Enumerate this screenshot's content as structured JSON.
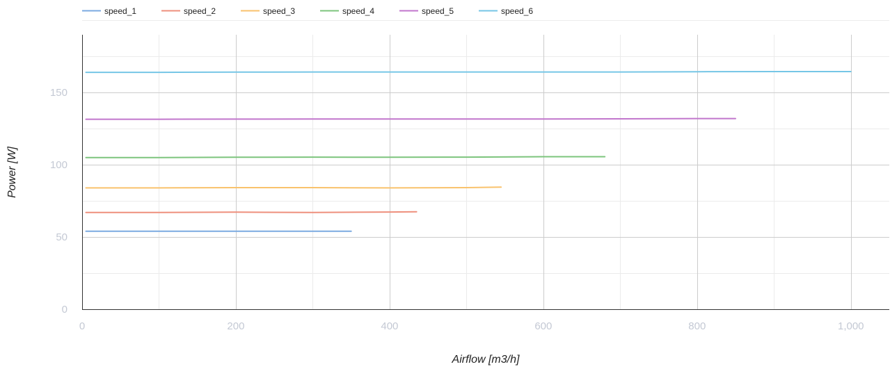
{
  "chart_data": {
    "type": "line",
    "xlabel": "Airflow [m3/h]",
    "ylabel": "Power [W]",
    "xlim": [
      0,
      1050
    ],
    "ylim": [
      0,
      190
    ],
    "x_ticks": [
      0,
      200,
      400,
      600,
      800,
      1000
    ],
    "x_tick_labels": [
      "0",
      "200",
      "400",
      "600",
      "800",
      "1,000"
    ],
    "x_minor_ticks": [
      100,
      300,
      500,
      700,
      900
    ],
    "y_ticks": [
      0,
      50,
      100,
      150
    ],
    "y_tick_labels": [
      "0",
      "50",
      "100",
      "150"
    ],
    "y_minor_ticks": [
      25,
      75,
      125,
      175
    ],
    "grid": true,
    "legend_position": "top-left",
    "series": [
      {
        "name": "speed_1",
        "color": "#7baae0",
        "x": [
          5,
          100,
          200,
          300,
          350
        ],
        "y": [
          54,
          54,
          54,
          54,
          54
        ]
      },
      {
        "name": "speed_2",
        "color": "#ee8f7c",
        "x": [
          5,
          100,
          200,
          300,
          400,
          435
        ],
        "y": [
          67,
          67,
          67.2,
          67,
          67.3,
          67.5
        ]
      },
      {
        "name": "speed_3",
        "color": "#f9c26c",
        "x": [
          5,
          100,
          200,
          300,
          400,
          500,
          545
        ],
        "y": [
          84,
          84,
          84.2,
          84.2,
          84,
          84.2,
          84.5
        ]
      },
      {
        "name": "speed_4",
        "color": "#7cc47c",
        "x": [
          5,
          100,
          200,
          300,
          400,
          500,
          600,
          680
        ],
        "y": [
          105,
          105,
          105.2,
          105.3,
          105.2,
          105.3,
          105.6,
          105.6
        ]
      },
      {
        "name": "speed_5",
        "color": "#c176cc",
        "x": [
          5,
          100,
          200,
          300,
          400,
          500,
          600,
          700,
          800,
          850
        ],
        "y": [
          131.5,
          131.5,
          131.6,
          131.7,
          131.7,
          131.7,
          131.7,
          131.8,
          132,
          132
        ]
      },
      {
        "name": "speed_6",
        "color": "#76c6e6",
        "x": [
          5,
          100,
          200,
          300,
          400,
          500,
          600,
          700,
          800,
          900,
          1000
        ],
        "y": [
          164,
          164,
          164.1,
          164.2,
          164.2,
          164.2,
          164.2,
          164.2,
          164.4,
          164.5,
          164.5
        ]
      }
    ]
  }
}
